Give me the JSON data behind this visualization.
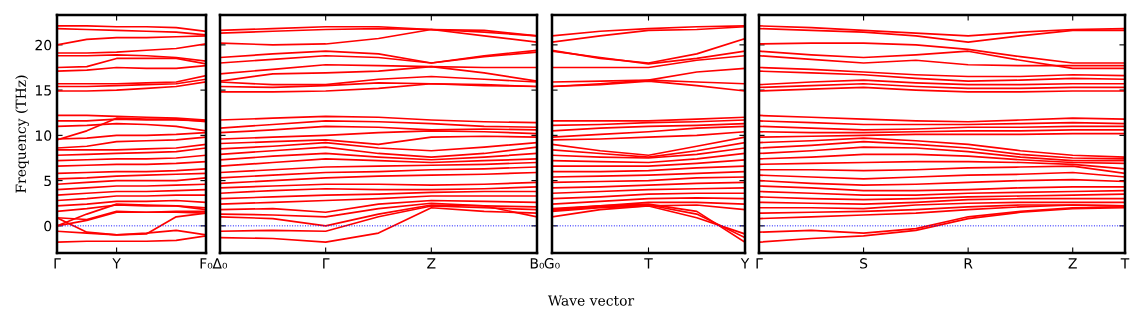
{
  "chart_data": [
    {
      "type": "line",
      "ylabel": "Frequency (THz)",
      "categories": [
        "Γ",
        null,
        "Y",
        null,
        null,
        "F₀"
      ],
      "ylim": [
        -3,
        23.3
      ],
      "yticks": [
        0,
        5,
        10,
        15,
        20
      ],
      "line_style": "solid",
      "ref_lines": [
        {
          "axis": "y",
          "value": 0,
          "color": "#0000ff",
          "line_style": "dotted"
        }
      ],
      "series": [
        {
          "color": "#ff0000",
          "values": [
            22.1,
            22.1,
            22.0,
            22.0,
            21.9,
            21.5
          ]
        },
        {
          "color": "#ff0000",
          "values": [
            21.8,
            21.7,
            21.6,
            21.5,
            21.4,
            21.1
          ]
        },
        {
          "color": "#ff0000",
          "values": [
            20.0,
            20.6,
            20.8,
            20.8,
            20.9,
            21.0
          ]
        },
        {
          "color": "#ff0000",
          "values": [
            19.1,
            19.1,
            19.2,
            19.4,
            19.6,
            20.1
          ]
        },
        {
          "color": "#ff0000",
          "values": [
            18.8,
            18.8,
            18.9,
            18.8,
            18.6,
            18.2
          ]
        },
        {
          "color": "#ff0000",
          "values": [
            17.5,
            17.6,
            18.5,
            18.5,
            18.5,
            17.9
          ]
        },
        {
          "color": "#ff0000",
          "values": [
            17.1,
            17.2,
            17.5,
            17.4,
            17.4,
            17.7
          ]
        },
        {
          "color": "#ff0000",
          "values": [
            15.7,
            15.7,
            15.7,
            15.8,
            15.9,
            16.6
          ]
        },
        {
          "color": "#ff0000",
          "values": [
            15.4,
            15.4,
            15.5,
            15.6,
            15.7,
            16.2
          ]
        },
        {
          "color": "#ff0000",
          "values": [
            14.9,
            14.9,
            15.0,
            15.2,
            15.4,
            15.9
          ]
        },
        {
          "color": "#ff0000",
          "values": [
            12.2,
            12.2,
            12.1,
            12.0,
            11.9,
            11.7
          ]
        },
        {
          "color": "#ff0000",
          "values": [
            11.6,
            11.6,
            11.8,
            11.7,
            11.7,
            11.6
          ]
        },
        {
          "color": "#ff0000",
          "values": [
            11.0,
            11.1,
            11.3,
            11.2,
            11.0,
            10.5
          ]
        },
        {
          "color": "#ff0000",
          "values": [
            9.5,
            10.5,
            11.9,
            11.8,
            11.8,
            11.5
          ]
        },
        {
          "color": "#ff0000",
          "values": [
            9.6,
            9.7,
            10.0,
            10.0,
            10.1,
            10.3
          ]
        },
        {
          "color": "#ff0000",
          "values": [
            8.6,
            8.8,
            9.3,
            9.4,
            9.5,
            9.8
          ]
        },
        {
          "color": "#ff0000",
          "values": [
            8.4,
            8.4,
            8.4,
            8.5,
            8.6,
            9.0
          ]
        },
        {
          "color": "#ff0000",
          "values": [
            7.8,
            7.9,
            8.0,
            8.1,
            8.2,
            8.6
          ]
        },
        {
          "color": "#ff0000",
          "values": [
            7.2,
            7.3,
            7.4,
            7.4,
            7.5,
            7.8
          ]
        },
        {
          "color": "#ff0000",
          "values": [
            6.6,
            6.7,
            6.8,
            6.8,
            6.9,
            7.1
          ]
        },
        {
          "color": "#ff0000",
          "values": [
            5.8,
            5.9,
            6.0,
            6.0,
            6.1,
            6.3
          ]
        },
        {
          "color": "#ff0000",
          "values": [
            5.2,
            5.3,
            5.5,
            5.6,
            5.7,
            5.8
          ]
        },
        {
          "color": "#ff0000",
          "values": [
            4.6,
            4.8,
            5.0,
            5.0,
            5.0,
            5.3
          ]
        },
        {
          "color": "#ff0000",
          "values": [
            4.0,
            4.2,
            4.4,
            4.4,
            4.5,
            4.6
          ]
        },
        {
          "color": "#ff0000",
          "values": [
            3.4,
            3.6,
            3.8,
            3.8,
            3.9,
            4.0
          ]
        },
        {
          "color": "#ff0000",
          "values": [
            2.8,
            3.0,
            3.3,
            3.3,
            3.4,
            3.4
          ]
        },
        {
          "color": "#ff0000",
          "values": [
            2.2,
            2.4,
            2.7,
            2.7,
            2.8,
            2.6
          ]
        },
        {
          "color": "#ff0000",
          "values": [
            1.6,
            1.9,
            2.3,
            2.2,
            2.2,
            2.0
          ]
        },
        {
          "color": "#ff0000",
          "values": [
            0.9,
            0.7,
            1.6,
            1.5,
            1.5,
            1.4
          ]
        },
        {
          "color": "#ff0000",
          "values": [
            0.0,
            1.3,
            2.4,
            2.3,
            2.2,
            1.8
          ]
        },
        {
          "color": "#ff0000",
          "values": [
            0.0,
            0.6,
            1.5,
            1.5,
            1.6,
            1.6
          ]
        },
        {
          "color": "#ff0000",
          "values": [
            0.9,
            -0.7,
            -1.0,
            -0.9,
            1.0,
            1.4
          ]
        },
        {
          "color": "#ff0000",
          "values": [
            -0.6,
            -0.8,
            -1.0,
            -0.8,
            -0.5,
            -1.0
          ]
        },
        {
          "color": "#ff0000",
          "values": [
            -1.8,
            -1.7,
            -1.7,
            -1.7,
            -1.6,
            -1.1
          ]
        }
      ]
    },
    {
      "type": "line",
      "categories": [
        "Δ₀",
        null,
        "Γ",
        null,
        "Z",
        null,
        "B₀"
      ],
      "ylim": [
        -3,
        23.3
      ],
      "yticks": [
        0,
        5,
        10,
        15,
        20
      ],
      "tick_labels": "x",
      "line_style": "solid",
      "ref_lines": [
        {
          "axis": "y",
          "value": 0,
          "color": "#0000ff",
          "line_style": "dotted"
        }
      ],
      "series": [
        {
          "color": "#ff0000",
          "values": [
            21.6,
            21.8,
            22.0,
            22.0,
            21.7,
            21.4,
            21.0
          ]
        },
        {
          "color": "#ff0000",
          "values": [
            21.3,
            21.5,
            21.7,
            21.8,
            21.7,
            21.0,
            20.3
          ]
        },
        {
          "color": "#ff0000",
          "values": [
            20.2,
            20.0,
            20.1,
            20.7,
            21.7,
            21.6,
            21.0
          ]
        },
        {
          "color": "#ff0000",
          "values": [
            18.6,
            19.0,
            19.3,
            19.0,
            18.0,
            18.8,
            19.4
          ]
        },
        {
          "color": "#ff0000",
          "values": [
            18.0,
            18.4,
            18.8,
            18.6,
            18.0,
            18.7,
            19.2
          ]
        },
        {
          "color": "#ff0000",
          "values": [
            16.8,
            17.3,
            17.8,
            17.7,
            17.6,
            17.5,
            17.5
          ]
        },
        {
          "color": "#ff0000",
          "values": [
            16.0,
            16.8,
            16.9,
            17.1,
            17.6,
            16.9,
            16.0
          ]
        },
        {
          "color": "#ff0000",
          "values": [
            15.9,
            15.6,
            15.6,
            16.2,
            16.5,
            16.2,
            15.9
          ]
        },
        {
          "color": "#ff0000",
          "values": [
            15.4,
            15.3,
            15.5,
            15.8,
            15.7,
            15.5,
            15.4
          ]
        },
        {
          "color": "#ff0000",
          "values": [
            14.8,
            14.8,
            14.9,
            15.2,
            15.7,
            15.6,
            15.4
          ]
        },
        {
          "color": "#ff0000",
          "values": [
            11.7,
            11.9,
            12.1,
            12.0,
            11.7,
            11.5,
            11.4
          ]
        },
        {
          "color": "#ff0000",
          "values": [
            10.8,
            11.2,
            11.6,
            11.5,
            11.3,
            11.0,
            10.9
          ]
        },
        {
          "color": "#ff0000",
          "values": [
            10.3,
            10.6,
            11.0,
            10.9,
            10.6,
            10.7,
            10.6
          ]
        },
        {
          "color": "#ff0000",
          "values": [
            9.6,
            9.8,
            10.0,
            10.3,
            10.5,
            10.4,
            10.2
          ]
        },
        {
          "color": "#ff0000",
          "values": [
            9.1,
            9.3,
            9.5,
            9.0,
            9.8,
            9.9,
            9.8
          ]
        },
        {
          "color": "#ff0000",
          "values": [
            8.5,
            8.8,
            9.2,
            8.6,
            8.3,
            8.7,
            9.2
          ]
        },
        {
          "color": "#ff0000",
          "values": [
            7.9,
            8.3,
            8.7,
            8.0,
            7.6,
            8.0,
            8.7
          ]
        },
        {
          "color": "#ff0000",
          "values": [
            7.3,
            7.7,
            8.0,
            7.6,
            7.3,
            7.6,
            8.0
          ]
        },
        {
          "color": "#ff0000",
          "values": [
            6.6,
            7.0,
            7.4,
            7.2,
            7.0,
            7.2,
            7.4
          ]
        },
        {
          "color": "#ff0000",
          "values": [
            5.9,
            6.2,
            6.5,
            6.6,
            6.7,
            6.8,
            7.0
          ]
        },
        {
          "color": "#ff0000",
          "values": [
            5.3,
            5.6,
            5.9,
            6.0,
            6.2,
            6.3,
            6.5
          ]
        },
        {
          "color": "#ff0000",
          "values": [
            4.7,
            5.0,
            5.3,
            5.5,
            5.6,
            5.7,
            5.9
          ]
        },
        {
          "color": "#ff0000",
          "values": [
            4.2,
            4.4,
            4.6,
            4.6,
            4.5,
            4.6,
            4.8
          ]
        },
        {
          "color": "#ff0000",
          "values": [
            3.6,
            3.9,
            4.1,
            4.0,
            4.0,
            4.1,
            4.3
          ]
        },
        {
          "color": "#ff0000",
          "values": [
            3.0,
            3.2,
            3.4,
            3.5,
            3.7,
            3.8,
            3.8
          ]
        },
        {
          "color": "#ff0000",
          "values": [
            2.4,
            2.6,
            2.8,
            3.0,
            3.3,
            3.3,
            3.3
          ]
        },
        {
          "color": "#ff0000",
          "values": [
            1.8,
            1.9,
            1.5,
            2.4,
            2.8,
            2.7,
            2.6
          ]
        },
        {
          "color": "#ff0000",
          "values": [
            1.3,
            1.2,
            1.0,
            1.9,
            2.5,
            2.2,
            1.0
          ]
        },
        {
          "color": "#ff0000",
          "values": [
            1.0,
            0.8,
            0.0,
            1.3,
            2.3,
            2.2,
            2.1
          ]
        },
        {
          "color": "#ff0000",
          "values": [
            -0.6,
            -0.5,
            -0.6,
            1.0,
            2.2,
            2.0,
            1.8
          ]
        },
        {
          "color": "#ff0000",
          "values": [
            -1.3,
            -1.4,
            -1.8,
            -0.8,
            2.0,
            1.6,
            1.4
          ]
        }
      ]
    },
    {
      "type": "line",
      "xlabel": "Wave vector",
      "categories": [
        "G₀",
        null,
        "T",
        null,
        "Y"
      ],
      "ylim": [
        -3,
        23.3
      ],
      "yticks": [
        0,
        5,
        10,
        15,
        20
      ],
      "tick_labels": "x",
      "line_style": "solid",
      "ref_lines": [
        {
          "axis": "y",
          "value": 0,
          "color": "#0000ff",
          "line_style": "dotted"
        }
      ],
      "series": [
        {
          "color": "#ff0000",
          "values": [
            21.0,
            21.5,
            21.8,
            22.0,
            22.1
          ]
        },
        {
          "color": "#ff0000",
          "values": [
            20.3,
            21.0,
            21.6,
            21.7,
            22.0
          ]
        },
        {
          "color": "#ff0000",
          "values": [
            19.4,
            18.5,
            18.0,
            19.0,
            20.7
          ]
        },
        {
          "color": "#ff0000",
          "values": [
            19.3,
            18.6,
            17.9,
            18.5,
            19.3
          ]
        },
        {
          "color": "#ff0000",
          "values": [
            17.5,
            17.5,
            17.5,
            18.3,
            18.8
          ]
        },
        {
          "color": "#ff0000",
          "values": [
            15.9,
            16.0,
            16.1,
            17.0,
            17.4
          ]
        },
        {
          "color": "#ff0000",
          "values": [
            15.4,
            15.7,
            16.1,
            15.9,
            15.7
          ]
        },
        {
          "color": "#ff0000",
          "values": [
            15.4,
            15.6,
            16.0,
            15.5,
            14.9
          ]
        },
        {
          "color": "#ff0000",
          "values": [
            11.6,
            11.6,
            11.6,
            11.8,
            12.0
          ]
        },
        {
          "color": "#ff0000",
          "values": [
            11.1,
            11.2,
            11.4,
            11.5,
            11.7
          ]
        },
        {
          "color": "#ff0000",
          "values": [
            10.5,
            10.8,
            11.0,
            11.1,
            11.3
          ]
        },
        {
          "color": "#ff0000",
          "values": [
            9.8,
            10.1,
            10.4,
            10.8,
            11.0
          ]
        },
        {
          "color": "#ff0000",
          "values": [
            9.5,
            9.6,
            9.8,
            10.0,
            10.4
          ]
        },
        {
          "color": "#ff0000",
          "values": [
            9.0,
            8.3,
            7.8,
            8.8,
            9.8
          ]
        },
        {
          "color": "#ff0000",
          "values": [
            8.4,
            8.0,
            7.6,
            8.3,
            9.2
          ]
        },
        {
          "color": "#ff0000",
          "values": [
            7.8,
            7.6,
            7.5,
            7.9,
            8.6
          ]
        },
        {
          "color": "#ff0000",
          "values": [
            7.2,
            7.1,
            7.0,
            7.4,
            8.0
          ]
        },
        {
          "color": "#ff0000",
          "values": [
            6.6,
            6.6,
            6.6,
            6.9,
            7.3
          ]
        },
        {
          "color": "#ff0000",
          "values": [
            6.0,
            6.0,
            6.1,
            6.4,
            6.6
          ]
        },
        {
          "color": "#ff0000",
          "values": [
            5.4,
            5.5,
            5.6,
            5.8,
            6.0
          ]
        },
        {
          "color": "#ff0000",
          "values": [
            4.8,
            4.9,
            5.0,
            5.3,
            5.4
          ]
        },
        {
          "color": "#ff0000",
          "values": [
            4.2,
            4.3,
            4.5,
            4.7,
            4.8
          ]
        },
        {
          "color": "#ff0000",
          "values": [
            3.6,
            3.8,
            4.0,
            4.1,
            4.2
          ]
        },
        {
          "color": "#ff0000",
          "values": [
            3.0,
            3.2,
            3.5,
            3.6,
            3.6
          ]
        },
        {
          "color": "#ff0000",
          "values": [
            2.4,
            2.7,
            3.0,
            3.1,
            3.0
          ]
        },
        {
          "color": "#ff0000",
          "values": [
            1.8,
            2.2,
            2.6,
            2.6,
            2.4
          ]
        },
        {
          "color": "#ff0000",
          "values": [
            1.0,
            1.8,
            2.2,
            2.3,
            1.8
          ]
        },
        {
          "color": "#ff0000",
          "values": [
            1.6,
            2.0,
            2.2,
            0.9,
            -0.9
          ]
        },
        {
          "color": "#ff0000",
          "values": [
            1.7,
            2.1,
            2.3,
            1.3,
            -1.3
          ]
        },
        {
          "color": "#ff0000",
          "values": [
            1.9,
            2.2,
            2.4,
            1.6,
            -1.8
          ]
        }
      ]
    },
    {
      "type": "line",
      "categories": [
        "Γ",
        null,
        "S",
        null,
        "R",
        null,
        "Z",
        "T"
      ],
      "ylim": [
        -3,
        23.3
      ],
      "yticks": [
        0,
        5,
        10,
        15,
        20
      ],
      "tick_labels": "x",
      "line_style": "solid",
      "ref_lines": [
        {
          "axis": "y",
          "value": 0,
          "color": "#0000ff",
          "line_style": "dotted"
        }
      ],
      "series": [
        {
          "color": "#ff0000",
          "values": [
            22.1,
            21.9,
            21.6,
            21.3,
            21.0,
            21.4,
            21.7,
            21.8
          ]
        },
        {
          "color": "#ff0000",
          "values": [
            21.8,
            21.6,
            21.4,
            21.0,
            20.3,
            21.0,
            21.6,
            21.6
          ]
        },
        {
          "color": "#ff0000",
          "values": [
            20.1,
            20.2,
            20.2,
            20.0,
            19.5,
            18.7,
            18.0,
            18.0
          ]
        },
        {
          "color": "#ff0000",
          "values": [
            19.3,
            18.9,
            18.6,
            18.9,
            19.3,
            18.3,
            17.4,
            17.4
          ]
        },
        {
          "color": "#ff0000",
          "values": [
            18.8,
            18.4,
            18.0,
            18.3,
            17.8,
            17.7,
            17.7,
            17.7
          ]
        },
        {
          "color": "#ff0000",
          "values": [
            17.5,
            17.3,
            17.0,
            16.7,
            16.5,
            16.5,
            16.7,
            16.6
          ]
        },
        {
          "color": "#ff0000",
          "values": [
            17.1,
            16.9,
            16.7,
            16.3,
            16.0,
            16.1,
            16.3,
            16.2
          ]
        },
        {
          "color": "#ff0000",
          "values": [
            15.6,
            15.9,
            16.1,
            15.8,
            15.6,
            15.6,
            15.7,
            15.7
          ]
        },
        {
          "color": "#ff0000",
          "values": [
            15.3,
            15.5,
            15.7,
            15.4,
            15.2,
            15.2,
            15.3,
            15.3
          ]
        },
        {
          "color": "#ff0000",
          "values": [
            14.9,
            15.1,
            15.3,
            15.0,
            14.8,
            14.8,
            14.9,
            14.9
          ]
        },
        {
          "color": "#ff0000",
          "values": [
            12.2,
            12.0,
            11.8,
            11.6,
            11.5,
            11.7,
            11.9,
            11.8
          ]
        },
        {
          "color": "#ff0000",
          "values": [
            11.6,
            11.4,
            11.2,
            11.2,
            11.2,
            11.3,
            11.4,
            11.3
          ]
        },
        {
          "color": "#ff0000",
          "values": [
            11.0,
            10.8,
            10.6,
            10.7,
            10.9,
            10.9,
            11.0,
            11.0
          ]
        },
        {
          "color": "#ff0000",
          "values": [
            10.4,
            10.3,
            10.3,
            10.4,
            10.5,
            10.5,
            10.6,
            10.6
          ]
        },
        {
          "color": "#ff0000",
          "values": [
            9.8,
            9.9,
            10.0,
            10.1,
            10.1,
            10.1,
            10.2,
            10.2
          ]
        },
        {
          "color": "#ff0000",
          "values": [
            9.2,
            9.4,
            9.7,
            9.4,
            9.0,
            8.3,
            7.8,
            7.6
          ]
        },
        {
          "color": "#ff0000",
          "values": [
            8.6,
            8.9,
            9.3,
            9.0,
            8.6,
            7.9,
            7.5,
            7.4
          ]
        },
        {
          "color": "#ff0000",
          "values": [
            8.0,
            8.3,
            8.7,
            8.6,
            8.2,
            7.6,
            7.2,
            7.2
          ]
        },
        {
          "color": "#ff0000",
          "values": [
            7.4,
            7.6,
            7.9,
            7.9,
            7.7,
            7.3,
            7.0,
            6.9
          ]
        },
        {
          "color": "#ff0000",
          "values": [
            6.8,
            6.9,
            7.0,
            7.1,
            7.1,
            7.0,
            6.8,
            6.3
          ]
        },
        {
          "color": "#ff0000",
          "values": [
            6.2,
            6.2,
            6.1,
            6.2,
            6.4,
            6.5,
            6.6,
            5.8
          ]
        },
        {
          "color": "#ff0000",
          "values": [
            5.6,
            5.4,
            5.2,
            5.4,
            5.6,
            5.7,
            5.9,
            5.4
          ]
        },
        {
          "color": "#ff0000",
          "values": [
            5.0,
            4.7,
            4.5,
            4.6,
            4.8,
            5.0,
            5.1,
            4.9
          ]
        },
        {
          "color": "#ff0000",
          "values": [
            4.4,
            4.2,
            3.9,
            3.9,
            4.0,
            4.2,
            4.3,
            4.3
          ]
        },
        {
          "color": "#ff0000",
          "values": [
            3.8,
            3.6,
            3.4,
            3.4,
            3.6,
            3.7,
            3.8,
            3.9
          ]
        },
        {
          "color": "#ff0000",
          "values": [
            3.2,
            3.0,
            2.9,
            3.0,
            3.2,
            3.3,
            3.4,
            3.5
          ]
        },
        {
          "color": "#ff0000",
          "values": [
            2.6,
            2.5,
            2.4,
            2.6,
            2.9,
            3.0,
            3.0,
            3.0
          ]
        },
        {
          "color": "#ff0000",
          "values": [
            2.0,
            2.0,
            1.9,
            2.3,
            2.5,
            2.6,
            2.6,
            2.6
          ]
        },
        {
          "color": "#ff0000",
          "values": [
            1.4,
            1.5,
            1.6,
            1.8,
            2.1,
            2.3,
            2.3,
            2.2
          ]
        },
        {
          "color": "#ff0000",
          "values": [
            0.8,
            1.0,
            1.2,
            1.4,
            1.8,
            2.1,
            2.3,
            2.2
          ]
        },
        {
          "color": "#ff0000",
          "values": [
            -0.7,
            -0.5,
            -0.8,
            -0.3,
            1.0,
            1.6,
            2.0,
            2.1
          ]
        },
        {
          "color": "#ff0000",
          "values": [
            -1.8,
            -1.4,
            -1.1,
            -0.5,
            0.8,
            1.5,
            1.9,
            2.0
          ]
        }
      ]
    }
  ]
}
